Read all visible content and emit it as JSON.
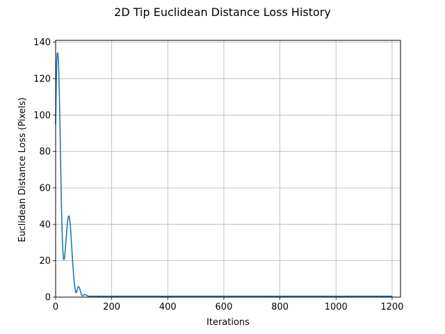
{
  "chart_data": {
    "type": "line",
    "title": "2D Tip Euclidean Distance Loss History",
    "xlabel": "Iterations",
    "ylabel": "Euclidean Distance Loss (Pixels)",
    "xlim": [
      0,
      1230
    ],
    "ylim": [
      0,
      141
    ],
    "xticks": [
      0,
      200,
      400,
      600,
      800,
      1000,
      1200
    ],
    "yticks": [
      0,
      20,
      40,
      60,
      80,
      100,
      120,
      140
    ],
    "grid": true,
    "line_color": "#1f77b4",
    "series": [
      {
        "x": [
          0,
          2,
          4,
          6,
          8,
          10,
          12,
          14,
          16,
          18,
          20,
          22,
          24,
          26,
          28,
          30,
          32,
          34,
          36,
          38,
          40,
          42,
          44,
          46,
          48,
          50,
          52,
          54,
          56,
          58,
          60,
          62,
          64,
          66,
          68,
          70,
          72,
          74,
          76,
          78,
          80,
          82,
          84,
          86,
          88,
          90,
          92,
          94,
          96,
          98,
          100,
          102,
          104,
          106,
          108,
          110,
          112,
          114,
          116,
          118,
          120,
          125,
          130,
          135,
          140,
          145,
          150,
          155,
          160,
          170,
          180,
          200,
          250,
          300,
          400,
          500,
          600,
          700,
          800,
          900,
          1000,
          1100,
          1200
        ],
        "y": [
          95,
          115,
          130,
          134,
          134,
          130,
          120,
          106,
          90,
          73,
          56,
          42,
          32,
          25,
          21,
          20.5,
          22,
          25,
          29,
          33,
          37,
          40.5,
          43,
          44.5,
          44.5,
          43,
          40,
          36,
          31,
          26,
          21,
          16.5,
          12.5,
          9,
          6,
          4,
          2.5,
          2.5,
          3.5,
          4.8,
          5.6,
          5.8,
          5.4,
          4.6,
          3.5,
          2.4,
          1.5,
          0.9,
          0.7,
          0.8,
          1.1,
          1.3,
          1.4,
          1.4,
          1.3,
          1.1,
          0.9,
          0.7,
          0.6,
          0.5,
          0.5,
          0.5,
          0.5,
          0.5,
          0.5,
          0.5,
          0.5,
          0.5,
          0.5,
          0.5,
          0.5,
          0.5,
          0.5,
          0.5,
          0.5,
          0.5,
          0.5,
          0.5,
          0.5,
          0.5,
          0.5,
          0.5,
          0.5
        ]
      }
    ]
  }
}
